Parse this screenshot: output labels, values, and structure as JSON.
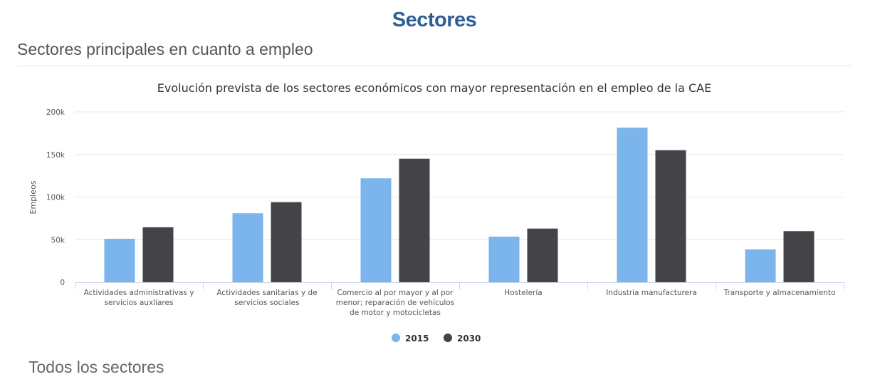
{
  "header": {
    "title": "Sectores",
    "section_title": "Sectores principales en cuanto a empleo",
    "next_section_title": "Todos los sectores"
  },
  "chart_data": {
    "type": "bar",
    "title": "Evolución prevista de los sectores económicos con mayor representación en el empleo de la CAE",
    "xlabel": "",
    "ylabel": "Empleos",
    "ylim": [
      0,
      200000
    ],
    "yticks": [
      0,
      50000,
      100000,
      150000,
      200000
    ],
    "ytick_labels": [
      "0",
      "50k",
      "100k",
      "150k",
      "200k"
    ],
    "grid": true,
    "legend_position": "bottom-center",
    "categories": [
      [
        "Actividades administrativas y",
        "servicios auxliares"
      ],
      [
        "Actividades sanitarias y de",
        "servicios sociales"
      ],
      [
        "Comercio al por mayor y al por",
        "menor; reparación de vehículos",
        "de motor y motocicletas"
      ],
      [
        "Hostelería"
      ],
      [
        "Industria manufacturera"
      ],
      [
        "Transporte y almacenamiento"
      ]
    ],
    "series": [
      {
        "name": "2015",
        "color": "#7cb5ec",
        "values": [
          51000,
          81000,
          122000,
          53500,
          181500,
          38500
        ]
      },
      {
        "name": "2030",
        "color": "#434348",
        "values": [
          64500,
          94000,
          145000,
          63000,
          155000,
          60000
        ]
      }
    ]
  }
}
